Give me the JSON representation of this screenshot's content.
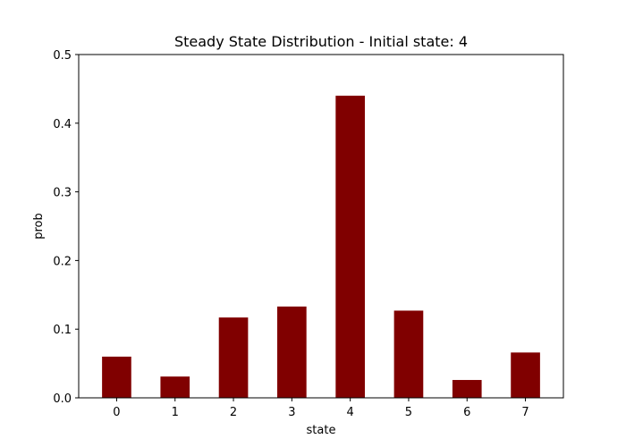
{
  "chart_data": {
    "type": "bar",
    "title": "Steady State Distribution - Initial state: 4",
    "xlabel": "state",
    "ylabel": "prob",
    "categories": [
      "0",
      "1",
      "2",
      "3",
      "4",
      "5",
      "6",
      "7"
    ],
    "values": [
      0.06,
      0.031,
      0.117,
      0.133,
      0.44,
      0.127,
      0.026,
      0.066
    ],
    "ylim": [
      0,
      0.5
    ],
    "yticks": [
      "0.0",
      "0.1",
      "0.2",
      "0.3",
      "0.4",
      "0.5"
    ],
    "bar_color": "#800000",
    "grid": false,
    "legend": "none"
  }
}
